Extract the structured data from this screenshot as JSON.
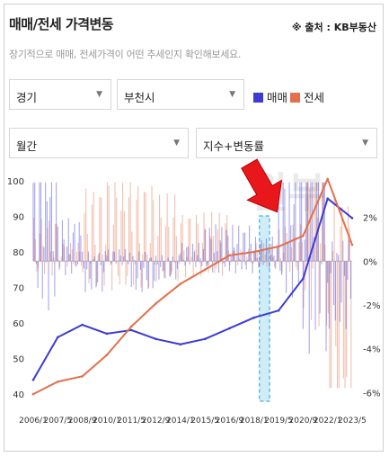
{
  "header": {
    "title": "매매/전세 가격변동",
    "source": "※ 출처 : KB부동산",
    "subtitle": "장기적으로 매매, 전세가격이 어떤 추세인지 확인해보세요."
  },
  "controls": {
    "region": "경기",
    "city": "부천시",
    "period": "월간",
    "metric": "지수+변동률",
    "legend_sale": "매매",
    "legend_jeonse": "전세"
  },
  "colors": {
    "sale": "#3b3bd6",
    "jeonse": "#e2704c",
    "highlight": "#bfe6f7",
    "highlight_border": "#2b9bd8",
    "arrow": "#e8171b"
  },
  "chart_data": {
    "type": "line",
    "x": [
      "2006/1",
      "2007/5",
      "2008/9",
      "2010/1",
      "2011/5",
      "2012/9",
      "2014/1",
      "2015/5",
      "2016/9",
      "2018/1",
      "2019/5",
      "2020/9",
      "2022/1",
      "2023/5"
    ],
    "ylim_left": [
      38,
      102
    ],
    "yticks_left": [
      100,
      90,
      80,
      70,
      60,
      50,
      40
    ],
    "ylim_right": [
      -6.4,
      4.0
    ],
    "yticks_right": [
      "2%",
      "0%",
      "-2%",
      "-4%",
      "-6%"
    ],
    "series": [
      {
        "name": "매매",
        "axis": "left",
        "values": [
          44,
          56,
          59.5,
          57,
          58,
          55.5,
          54,
          55.5,
          58.5,
          61.5,
          63.5,
          72.5,
          95,
          89.5
        ]
      },
      {
        "name": "전세",
        "axis": "left",
        "values": [
          40,
          43.5,
          45,
          51,
          59,
          65.5,
          71,
          75,
          79,
          80,
          81.5,
          84.5,
          100.5,
          82
        ]
      }
    ],
    "highlight_range": [
      "2018/1",
      "2019/5"
    ],
    "watermark": "월부"
  }
}
